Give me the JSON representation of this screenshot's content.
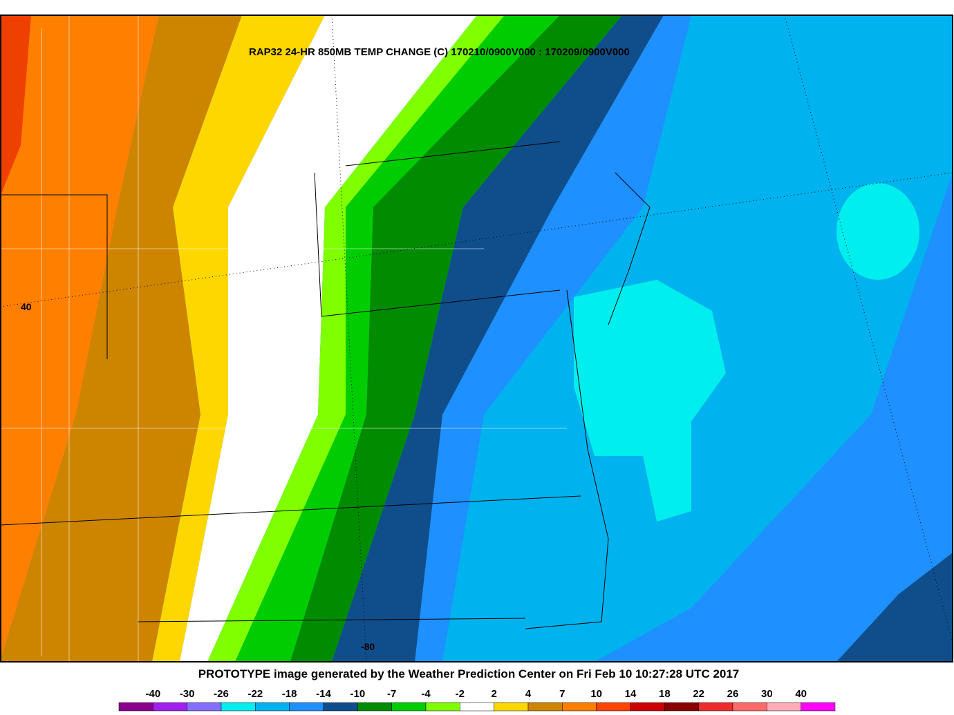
{
  "title": "RAP32 24-HR 850MB TEMP CHANGE (C) 170210/0900V000 : 170209/0900V000",
  "footer": "PROTOTYPE image generated by the Weather Prediction Center on Fri Feb 10 10:27:28 UTC 2017",
  "grid_labels": {
    "lat": "40",
    "lon": "-80"
  },
  "legend": {
    "ticks": [
      -40,
      -30,
      -26,
      -22,
      -18,
      -14,
      -10,
      -7,
      -4,
      -2,
      2,
      4,
      7,
      10,
      14,
      18,
      22,
      26,
      30,
      40
    ],
    "colors": [
      "#8b008b",
      "#a020f0",
      "#8470ff",
      "#00eeee",
      "#00b2ee",
      "#1e90ff",
      "#104e8b",
      "#008b00",
      "#00cd00",
      "#7fff00",
      "#ffffff",
      "#ffd700",
      "#cd8500",
      "#ff7f00",
      "#ff4500",
      "#cd0000",
      "#8b0000",
      "#ee2c2c",
      "#ff6a6a",
      "#ffaeb9",
      "#ff00ff"
    ]
  }
}
